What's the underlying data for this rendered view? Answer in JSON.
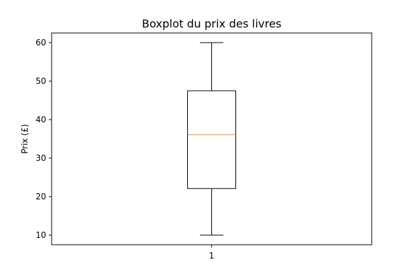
{
  "chart_data": {
    "type": "boxplot",
    "title": "Boxplot du prix des livres",
    "xlabel": "",
    "ylabel": "Prix (£)",
    "categories": [
      "1"
    ],
    "boxes": [
      {
        "category": "1",
        "whisker_low": 10,
        "q1": 22.1,
        "median": 36.1,
        "q3": 47.5,
        "whisker_high": 60
      }
    ],
    "yticks": [
      10,
      20,
      30,
      40,
      50,
      60
    ],
    "ylim": [
      7.5,
      62.5
    ],
    "grid": false,
    "colors": {
      "box": "#000000",
      "median": "#ff7f0e"
    }
  }
}
